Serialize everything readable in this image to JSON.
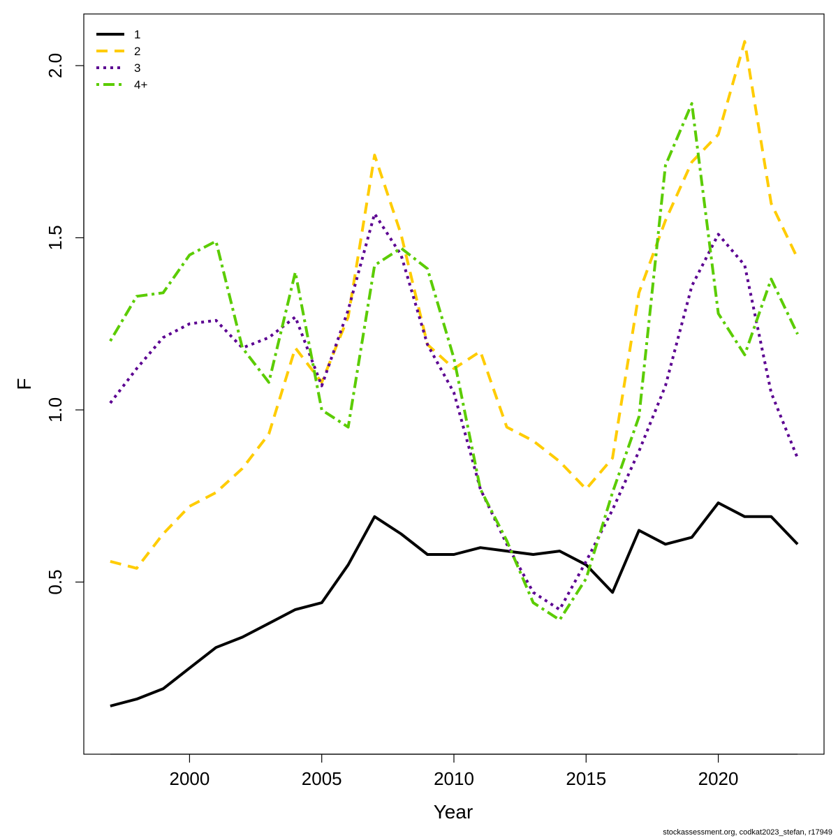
{
  "chart_data": {
    "type": "line",
    "title": "",
    "xlabel": "Year",
    "ylabel": "F",
    "xlim": [
      1996.0,
      2024.0
    ],
    "ylim": [
      0.0,
      2.15
    ],
    "xticks": [
      2000,
      2005,
      2010,
      2015,
      2020
    ],
    "yticks": [
      0.5,
      1.0,
      1.5,
      2.0
    ],
    "ytick_labels": [
      "0.5",
      "1.0",
      "1.5",
      "2.0"
    ],
    "grid": false,
    "legend_position": "top-left",
    "x": [
      1997,
      1998,
      1999,
      2000,
      2001,
      2002,
      2003,
      2004,
      2005,
      2006,
      2007,
      2008,
      2009,
      2010,
      2011,
      2012,
      2013,
      2014,
      2015,
      2016,
      2017,
      2018,
      2019,
      2020,
      2021,
      2022,
      2023
    ],
    "series": [
      {
        "name": "1",
        "color": "#000000",
        "dash": "solid",
        "values": [
          0.14,
          0.16,
          0.19,
          0.25,
          0.31,
          0.34,
          0.38,
          0.42,
          0.44,
          0.55,
          0.69,
          0.64,
          0.58,
          0.58,
          0.6,
          0.59,
          0.58,
          0.59,
          0.55,
          0.47,
          0.65,
          0.61,
          0.63,
          0.73,
          0.69,
          0.69,
          0.61
        ]
      },
      {
        "name": "2",
        "color": "#FFCC00",
        "dash": "dashed",
        "values": [
          0.56,
          0.54,
          0.64,
          0.72,
          0.76,
          0.83,
          0.93,
          1.18,
          1.08,
          1.27,
          1.74,
          1.51,
          1.19,
          1.12,
          1.17,
          0.95,
          0.91,
          0.85,
          0.77,
          0.86,
          1.34,
          1.55,
          1.72,
          1.8,
          2.07,
          1.6,
          1.44
        ]
      },
      {
        "name": "3",
        "color": "#5B0091",
        "dash": "dotted",
        "values": [
          1.02,
          1.12,
          1.21,
          1.25,
          1.26,
          1.18,
          1.21,
          1.27,
          1.07,
          1.29,
          1.57,
          1.45,
          1.19,
          1.05,
          0.77,
          0.61,
          0.47,
          0.42,
          0.56,
          0.71,
          0.88,
          1.07,
          1.36,
          1.51,
          1.42,
          1.05,
          0.86
        ]
      },
      {
        "name": "4+",
        "color": "#5BCC00",
        "dash": "dotdash",
        "values": [
          1.2,
          1.33,
          1.34,
          1.45,
          1.49,
          1.18,
          1.08,
          1.4,
          1.0,
          0.95,
          1.42,
          1.47,
          1.41,
          1.15,
          0.77,
          0.62,
          0.44,
          0.39,
          0.51,
          0.76,
          0.98,
          1.71,
          1.89,
          1.28,
          1.16,
          1.38,
          1.22
        ]
      }
    ]
  },
  "footer": {
    "note": "stockassessment.org, codkat2023_stefan, r17949"
  }
}
